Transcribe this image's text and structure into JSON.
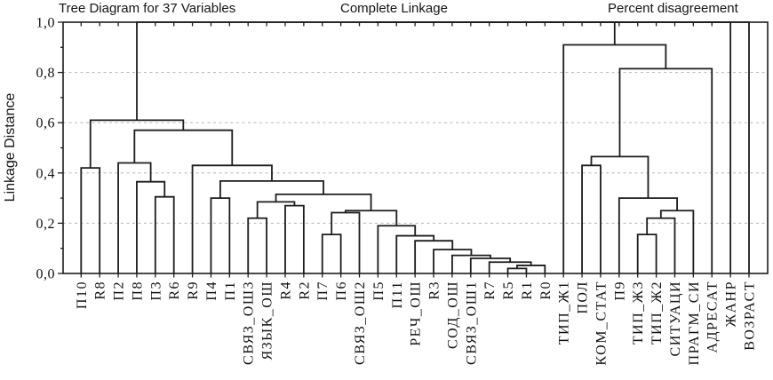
{
  "titles": {
    "left": "Tree Diagram for 37 Variables",
    "center": "Complete Linkage",
    "right": "Percent disagreement"
  },
  "y_axis": {
    "label": "Linkage Distance",
    "tick_labels": [
      "0,0",
      "0,2",
      "0,4",
      "0,6",
      "0,8",
      "1,0"
    ],
    "tick_values": [
      0,
      0.2,
      0.4,
      0.6,
      0.8,
      1.0
    ],
    "minor_tick_values": [
      0.1,
      0.3,
      0.5,
      0.7,
      0.9
    ],
    "range": [
      0,
      1
    ]
  },
  "colors": {
    "line": "#1c1c1c",
    "grid": "#bcbcbc",
    "background": "#ffffff",
    "text": "#111111"
  },
  "chart_data": {
    "type": "dendrogram",
    "title": "Tree Diagram for 37 Variables",
    "linkage_method": "Complete Linkage",
    "distance_metric": "Percent disagreement",
    "n_variables": 37,
    "ylabel": "Linkage Distance",
    "ylim": [
      0,
      1
    ],
    "gridline_values": [
      0.2,
      0.4,
      0.6,
      0.8
    ],
    "grid": "dashed-horizontal",
    "leaves": [
      "П10",
      "R8",
      "П2",
      "П8",
      "П3",
      "R6",
      "R9",
      "П4",
      "П1",
      "СВЯЗ_ОШ3",
      "ЯЗЫК_ОШ",
      "R4",
      "R2",
      "П7",
      "П6",
      "СВЯЗ_ОШ2",
      "П5",
      "П11",
      "РЕЧ_ОШ",
      "R3",
      "СОД_ОШ",
      "СВЯЗ_ОШ1",
      "R7",
      "R5",
      "R1",
      "R0",
      "ТИП_Ж1",
      "ПОЛ",
      "КОМ_СТАТ",
      "П9",
      "ТИП_Ж3",
      "ТИП_Ж2",
      "СИТУАЦИ",
      "ПРАГМ_СИ",
      "АДРЕСАТ",
      "ЖАНР",
      "ВОЗРАСТ"
    ],
    "tree": {
      "h": 1,
      "c": [
        {
          "h": 1,
          "c": [
            {
              "h": 1,
              "c": [
                {
                  "h": 0.61,
                  "c": [
                    {
                      "h": 0.42,
                      "c": [
                        "П10",
                        "R8"
                      ]
                    },
                    {
                      "h": 0.57,
                      "c": [
                        {
                          "h": 0.44,
                          "c": [
                            "П2",
                            {
                              "h": 0.365,
                              "c": [
                                "П8",
                                {
                                  "h": 0.305,
                                  "c": [
                                    "П3",
                                    "R6"
                                  ]
                                }
                              ]
                            }
                          ]
                        },
                        {
                          "h": 0.43,
                          "c": [
                            "R9",
                            {
                              "h": 0.368,
                              "c": [
                                {
                                  "h": 0.3,
                                  "c": [
                                    "П4",
                                    "П1"
                                  ]
                                },
                                {
                                  "h": 0.315,
                                  "c": [
                                    {
                                      "h": 0.285,
                                      "c": [
                                        {
                                          "h": 0.22,
                                          "c": [
                                            "СВЯЗ_ОШ3",
                                            "ЯЗЫК_ОШ"
                                          ]
                                        },
                                        {
                                          "h": 0.27,
                                          "c": [
                                            "R4",
                                            "R2"
                                          ]
                                        }
                                      ]
                                    },
                                    {
                                      "h": 0.25,
                                      "c": [
                                        {
                                          "h": 0.242,
                                          "c": [
                                            {
                                              "h": 0.155,
                                              "c": [
                                                "П7",
                                                "П6"
                                              ]
                                            },
                                            "СВЯЗ_ОШ2"
                                          ]
                                        },
                                        {
                                          "h": 0.19,
                                          "c": [
                                            "П5",
                                            {
                                              "h": 0.15,
                                              "c": [
                                                "П11",
                                                {
                                                  "h": 0.13,
                                                  "c": [
                                                    "РЕЧ_ОШ",
                                                    {
                                                      "h": 0.095,
                                                      "c": [
                                                        "R3",
                                                        {
                                                          "h": 0.072,
                                                          "c": [
                                                            "СОД_ОШ",
                                                            {
                                                              "h": 0.06,
                                                              "c": [
                                                                "СВЯЗ_ОШ1",
                                                                {
                                                                  "h": 0.045,
                                                                  "c": [
                                                                    "R7",
                                                                    {
                                                                      "h": 0.032,
                                                                      "c": [
                                                                        {
                                                                          "h": 0.02,
                                                                          "c": [
                                                                            "R5",
                                                                            "R1"
                                                                          ]
                                                                        },
                                                                        "R0"
                                                                      ]
                                                                    }
                                                                  ]
                                                                }
                                                              ]
                                                            }
                                                          ]
                                                        }
                                                      ]
                                                    }
                                                  ]
                                                }
                                              ]
                                            }
                                          ]
                                        }
                                      ]
                                    }
                                  ]
                                }
                              ]
                            }
                          ]
                        }
                      ]
                    }
                  ]
                },
                {
                  "h": 0.91,
                  "c": [
                    "ТИП_Ж1",
                    {
                      "h": 0.815,
                      "c": [
                        {
                          "h": 0.465,
                          "c": [
                            {
                              "h": 0.43,
                              "c": [
                                "ПОЛ",
                                "КОМ_СТАТ"
                              ]
                            },
                            {
                              "h": 0.3,
                              "c": [
                                "П9",
                                {
                                  "h": 0.25,
                                  "c": [
                                    {
                                      "h": 0.22,
                                      "c": [
                                        {
                                          "h": 0.155,
                                          "c": [
                                            "ТИП_Ж3",
                                            "ТИП_Ж2"
                                          ]
                                        },
                                        "СИТУАЦИ"
                                      ]
                                    },
                                    "ПРАГМ_СИ"
                                  ]
                                }
                              ]
                            }
                          ]
                        },
                        "АДРЕСАТ"
                      ]
                    }
                  ]
                }
              ]
            },
            "ЖАНР"
          ]
        },
        "ВОЗРАСТ"
      ]
    }
  }
}
